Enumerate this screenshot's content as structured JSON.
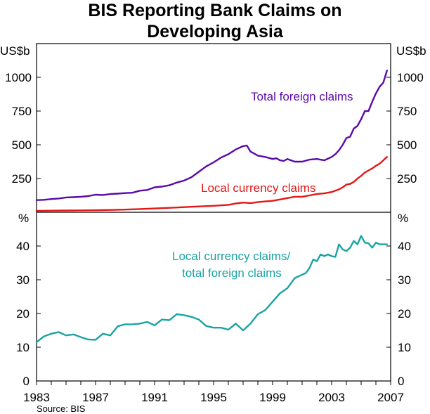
{
  "title_line1": "BIS Reporting Bank Claims on",
  "title_line2": "Developing Asia",
  "source": "Source: BIS",
  "chart_data": [
    {
      "type": "line",
      "panel": "top",
      "unit": "US$b",
      "ylim": [
        0,
        1250
      ],
      "ticks": [
        250,
        500,
        750,
        1000
      ],
      "tick_labels": [
        "250",
        "500",
        "750",
        "1000"
      ],
      "xlim": [
        1983,
        2007
      ],
      "series": [
        {
          "name": "Total foreign claims",
          "label": "Total foreign claims",
          "color": "#5a0aa8",
          "x": [
            1983.0,
            1983.5,
            1984.0,
            1984.5,
            1985.0,
            1985.5,
            1986.0,
            1986.5,
            1987.0,
            1987.5,
            1988.0,
            1988.5,
            1989.0,
            1989.5,
            1990.0,
            1990.5,
            1991.0,
            1991.5,
            1992.0,
            1992.5,
            1993.0,
            1993.5,
            1994.0,
            1994.5,
            1995.0,
            1995.5,
            1996.0,
            1996.5,
            1997.0,
            1997.25,
            1997.5,
            1998.0,
            1998.5,
            1999.0,
            1999.25,
            1999.5,
            1999.75,
            2000.0,
            2000.5,
            2001.0,
            2001.5,
            2002.0,
            2002.5,
            2003.0,
            2003.25,
            2003.5,
            2003.75,
            2004.0,
            2004.25,
            2004.5,
            2004.75,
            2005.0,
            2005.25,
            2005.5,
            2005.75,
            2006.0,
            2006.25,
            2006.5,
            2006.75
          ],
          "values": [
            90,
            92,
            98,
            102,
            110,
            112,
            115,
            120,
            130,
            128,
            135,
            138,
            142,
            145,
            160,
            165,
            185,
            190,
            200,
            220,
            235,
            260,
            300,
            340,
            370,
            405,
            430,
            465,
            490,
            495,
            450,
            420,
            410,
            395,
            400,
            385,
            380,
            395,
            375,
            375,
            390,
            395,
            385,
            410,
            430,
            460,
            500,
            550,
            560,
            620,
            640,
            690,
            750,
            750,
            820,
            880,
            930,
            960,
            1050
          ]
        },
        {
          "name": "Local currency claims",
          "label": "Local currency claims",
          "color": "#e51616",
          "x": [
            1983.0,
            1984.0,
            1985.0,
            1986.0,
            1987.0,
            1988.0,
            1989.0,
            1990.0,
            1991.0,
            1992.0,
            1993.0,
            1994.0,
            1995.0,
            1996.0,
            1996.5,
            1997.0,
            1997.5,
            1998.0,
            1998.5,
            1999.0,
            1999.5,
            2000.0,
            2000.5,
            2001.0,
            2001.5,
            2002.0,
            2002.5,
            2003.0,
            2003.5,
            2003.75,
            2004.0,
            2004.25,
            2004.5,
            2004.75,
            2005.0,
            2005.25,
            2005.5,
            2005.75,
            2006.0,
            2006.25,
            2006.5,
            2006.75
          ],
          "values": [
            10,
            12,
            13,
            14,
            15,
            17,
            20,
            24,
            28,
            33,
            38,
            43,
            48,
            55,
            65,
            72,
            68,
            75,
            80,
            85,
            95,
            105,
            115,
            115,
            125,
            135,
            140,
            150,
            170,
            185,
            205,
            210,
            225,
            250,
            270,
            295,
            310,
            325,
            345,
            360,
            385,
            410
          ]
        }
      ]
    },
    {
      "type": "line",
      "panel": "bottom",
      "unit": "%",
      "ylim": [
        0,
        50
      ],
      "ticks": [
        0,
        10,
        20,
        30,
        40
      ],
      "tick_labels": [
        "0",
        "10",
        "20",
        "30",
        "40"
      ],
      "xlim": [
        1983,
        2007
      ],
      "x_tick_labels": [
        "1983",
        "1987",
        "1991",
        "1995",
        "1999",
        "2003",
        "2007"
      ],
      "x_tick_values": [
        1983,
        1987,
        1991,
        1995,
        1999,
        2003,
        2007
      ],
      "series": [
        {
          "name": "Local currency claims/ total foreign claims",
          "label_line1": "Local currency claims/",
          "label_line2": "total foreign claims",
          "color": "#1aa3a3",
          "x": [
            1983.0,
            1983.5,
            1984.0,
            1984.5,
            1985.0,
            1985.5,
            1986.0,
            1986.5,
            1987.0,
            1987.5,
            1988.0,
            1988.5,
            1989.0,
            1989.5,
            1990.0,
            1990.5,
            1991.0,
            1991.5,
            1992.0,
            1992.5,
            1993.0,
            1993.5,
            1994.0,
            1994.5,
            1995.0,
            1995.5,
            1996.0,
            1996.5,
            1997.0,
            1997.5,
            1998.0,
            1998.5,
            1999.0,
            1999.5,
            2000.0,
            2000.5,
            2001.0,
            2001.25,
            2001.5,
            2001.75,
            2002.0,
            2002.25,
            2002.5,
            2002.75,
            2003.0,
            2003.25,
            2003.5,
            2003.75,
            2004.0,
            2004.25,
            2004.5,
            2004.75,
            2005.0,
            2005.25,
            2005.5,
            2005.75,
            2006.0,
            2006.25,
            2006.5,
            2006.75
          ],
          "values": [
            11.5,
            13.2,
            14.0,
            14.5,
            13.5,
            13.8,
            13.0,
            12.3,
            12.2,
            14.0,
            13.5,
            16.2,
            16.8,
            16.8,
            17.0,
            17.5,
            16.5,
            18.2,
            18.0,
            19.8,
            19.5,
            19.0,
            18.2,
            16.3,
            15.8,
            15.8,
            15.2,
            17.0,
            15.0,
            17.0,
            19.8,
            21.0,
            23.5,
            26.0,
            27.5,
            30.5,
            31.5,
            32.0,
            33.5,
            36.0,
            35.5,
            37.5,
            37.0,
            37.5,
            37.0,
            36.8,
            40.5,
            39.0,
            38.5,
            39.5,
            41.5,
            40.5,
            43.0,
            41.0,
            40.8,
            39.5,
            41.0,
            40.5,
            40.5,
            40.5
          ]
        }
      ]
    }
  ]
}
